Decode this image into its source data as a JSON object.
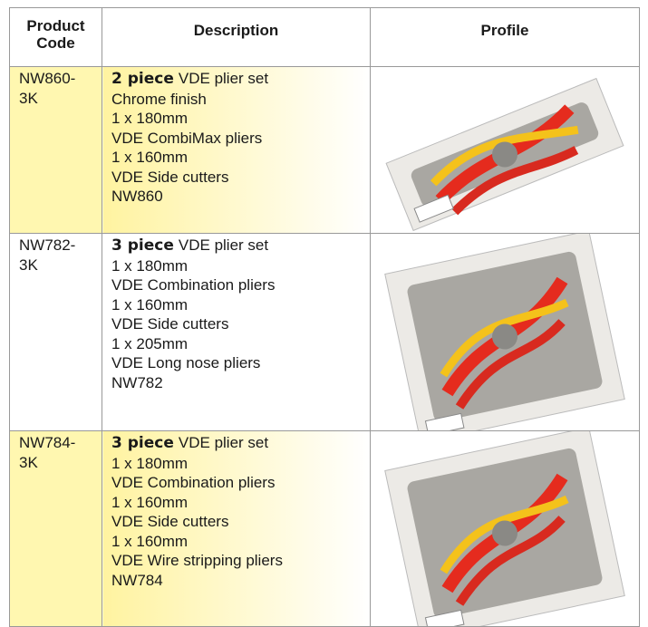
{
  "table": {
    "header": [
      "Product Code",
      "Description",
      "Profile"
    ],
    "rows": [
      {
        "code": "NW860-3K",
        "lead": "2 piece",
        "title": "VDE plier set",
        "lines": [
          "Chrome finish",
          "1 x 180mm",
          "VDE CombiMax pliers",
          "1 x 160mm",
          "VDE Side cutters",
          "NW860"
        ]
      },
      {
        "code": "NW782-3K",
        "lead": "3 piece",
        "title": "VDE plier set",
        "lines": [
          "1 x 180mm",
          "VDE Combination pliers",
          "1 x 160mm",
          "VDE Side cutters",
          "1 x 205mm",
          "VDE Long nose pliers",
          "NW782"
        ]
      },
      {
        "code": "NW784-3K",
        "lead": "3 piece",
        "title": "VDE plier set",
        "lines": [
          "1 x 180mm",
          "VDE Combination pliers",
          "1 x 160mm",
          "VDE Side cutters",
          "1 x 160mm",
          "VDE Wire stripping pliers",
          "NW784"
        ]
      }
    ]
  }
}
